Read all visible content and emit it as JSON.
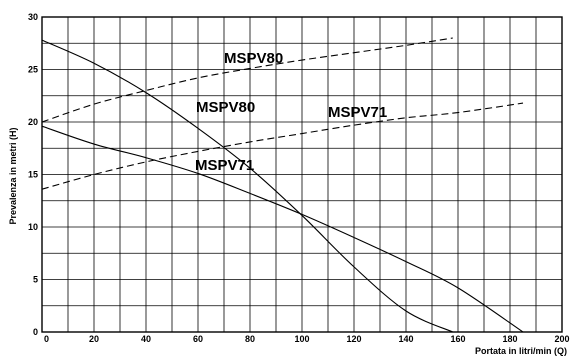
{
  "chart_data": {
    "type": "line",
    "xlabel": "Portata in litri/min (Q)",
    "ylabel": "Prevalenza in metri (H)",
    "xlim": [
      0,
      200
    ],
    "ylim": [
      0,
      30
    ],
    "xticks": [
      0,
      20,
      40,
      60,
      80,
      100,
      120,
      140,
      160,
      180,
      200
    ],
    "yticks": [
      0,
      5,
      10,
      15,
      20,
      25,
      30
    ],
    "grid": true,
    "legend": "none",
    "series": [
      {
        "name": "MSPV80",
        "style": "solid",
        "x": [
          0,
          20,
          40,
          60,
          80,
          100,
          120,
          140,
          158
        ],
        "y": [
          27.8,
          25.6,
          22.8,
          19.4,
          15.6,
          11.1,
          6.2,
          2.0,
          0
        ]
      },
      {
        "name": "MSPV71",
        "style": "solid",
        "x": [
          0,
          20,
          40,
          60,
          80,
          100,
          120,
          140,
          160,
          185
        ],
        "y": [
          19.6,
          17.9,
          16.6,
          15.1,
          13.2,
          11.2,
          9.0,
          6.7,
          4.2,
          0
        ]
      },
      {
        "name": "MSPV80",
        "style": "dashed",
        "x": [
          0,
          20,
          40,
          60,
          80,
          100,
          120,
          140,
          158
        ],
        "y": [
          20.0,
          21.7,
          23.0,
          24.2,
          25.1,
          25.9,
          26.6,
          27.3,
          28.0
        ]
      },
      {
        "name": "MSPV71",
        "style": "dashed",
        "x": [
          0,
          20,
          40,
          60,
          80,
          100,
          120,
          140,
          160,
          185
        ],
        "y": [
          13.6,
          15.0,
          16.2,
          17.2,
          18.1,
          18.9,
          19.7,
          20.4,
          20.9,
          21.8
        ]
      }
    ]
  }
}
